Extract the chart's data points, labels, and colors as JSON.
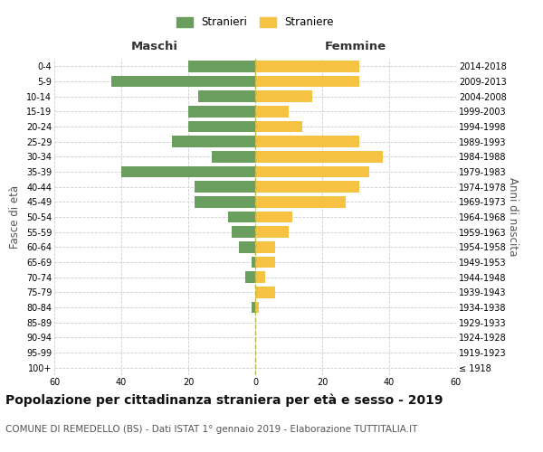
{
  "age_groups": [
    "100+",
    "95-99",
    "90-94",
    "85-89",
    "80-84",
    "75-79",
    "70-74",
    "65-69",
    "60-64",
    "55-59",
    "50-54",
    "45-49",
    "40-44",
    "35-39",
    "30-34",
    "25-29",
    "20-24",
    "15-19",
    "10-14",
    "5-9",
    "0-4"
  ],
  "birth_years": [
    "≤ 1918",
    "1919-1923",
    "1924-1928",
    "1929-1933",
    "1934-1938",
    "1939-1943",
    "1944-1948",
    "1949-1953",
    "1954-1958",
    "1959-1963",
    "1964-1968",
    "1969-1973",
    "1974-1978",
    "1979-1983",
    "1984-1988",
    "1989-1993",
    "1994-1998",
    "1999-2003",
    "2004-2008",
    "2009-2013",
    "2014-2018"
  ],
  "maschi": [
    0,
    0,
    0,
    0,
    1,
    0,
    3,
    1,
    5,
    7,
    8,
    18,
    18,
    40,
    13,
    25,
    20,
    20,
    17,
    43,
    20
  ],
  "femmine": [
    0,
    0,
    0,
    0,
    1,
    6,
    3,
    6,
    6,
    10,
    11,
    27,
    31,
    34,
    38,
    31,
    14,
    10,
    17,
    31,
    31
  ],
  "color_maschi": "#6a9e5e",
  "color_femmine": "#f5c242",
  "bg_color": "#ffffff",
  "grid_color": "#cccccc",
  "center_line_color": "#b8b84a",
  "title": "Popolazione per cittadinanza straniera per età e sesso - 2019",
  "subtitle": "COMUNE DI REMEDELLO (BS) - Dati ISTAT 1° gennaio 2019 - Elaborazione TUTTITALIA.IT",
  "xlabel_left": "Maschi",
  "xlabel_right": "Femmine",
  "ylabel_left": "Fasce di età",
  "ylabel_right": "Anni di nascita",
  "legend_stranieri": "Stranieri",
  "legend_straniere": "Straniere",
  "xlim": 60,
  "title_fontsize": 10,
  "subtitle_fontsize": 7.5,
  "tick_fontsize": 7,
  "label_fontsize": 8.5
}
